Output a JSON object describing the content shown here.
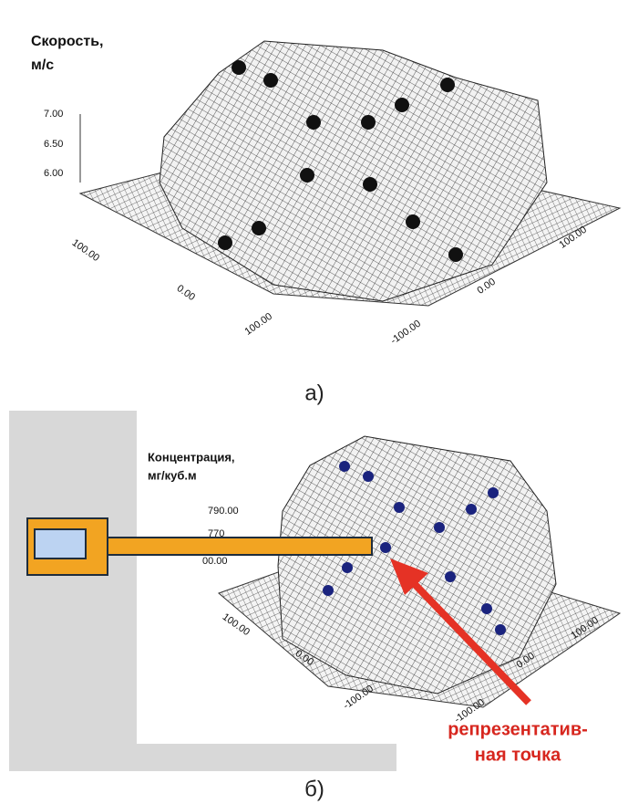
{
  "panel_a": {
    "axis_label": [
      "Скорость,",
      "м/с"
    ],
    "z_ticks": [
      "7.00",
      "6.50",
      "6.00"
    ],
    "left_ticks": [
      "100.00",
      "0.00",
      "100.00"
    ],
    "right_ticks": [
      "100.00",
      "0.00",
      "-100.00"
    ],
    "caption": "а)"
  },
  "panel_b": {
    "axis_label": [
      "Концентрация,",
      "мг/куб.м"
    ],
    "z_ticks": [
      "790.00",
      "770",
      "00.00"
    ],
    "left_ticks": [
      "100.00",
      "0.00",
      "-100.00"
    ],
    "right_ticks": [
      "100.00",
      "0.00",
      "-100.00"
    ],
    "annotation": [
      "репрезентатив-",
      "ная точка"
    ],
    "caption": "б)"
  }
}
